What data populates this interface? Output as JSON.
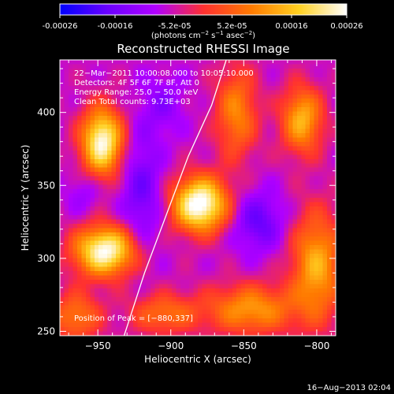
{
  "colorbar": {
    "ticks": [
      "-0.00026",
      "-0.00016",
      "-5.2e-05",
      "5.2e-05",
      "0.00016",
      "0.00026"
    ],
    "tick_values": [
      -0.00026,
      -0.00016,
      -5.2e-05,
      5.2e-05,
      0.00016,
      0.00026
    ],
    "range": [
      -0.00026,
      0.00026
    ],
    "unit_main": "(photons cm",
    "unit_sup1": "−2",
    "unit_mid": " s",
    "unit_sup2": "−1",
    "unit_tail": " asec",
    "unit_sup3": "−2",
    "unit_close": ")",
    "colormap": [
      "#0000ff",
      "#6a00ff",
      "#b000ff",
      "#ff3030",
      "#ff7a00",
      "#ffd020",
      "#ffffff"
    ]
  },
  "chart_data": {
    "type": "heatmap",
    "title": "Reconstructed RHESSI Image",
    "xlabel": "Heliocentric X (arcsec)",
    "ylabel": "Heliocentric Y (arcsec)",
    "xlim": [
      -976,
      -787
    ],
    "ylim": [
      247,
      436
    ],
    "x_ticks": [
      -950,
      -900,
      -850,
      -800
    ],
    "y_ticks": [
      250,
      300,
      350,
      400
    ],
    "x_tick_labels": [
      "−950",
      "−900",
      "−850",
      "−800"
    ],
    "y_tick_labels": [
      "250",
      "300",
      "350",
      "400"
    ],
    "info_lines": [
      "22−Mar−2011 10:00:08.000 to 10:05:10.000",
      "Detectors: 4F 5F 6F 7F 8F, Att 0",
      "Energy Range: 25.0 − 50.0 keV",
      "Clean    Total counts: 9.73E+03"
    ],
    "peak_label": "Position of Peak = [−880,337]",
    "peak": [
      -880,
      337
    ],
    "background_level": 0.12,
    "sources": [
      {
        "x": -880,
        "y": 337,
        "level": 1.0,
        "sx": 13,
        "sy": 13
      },
      {
        "x": -947,
        "y": 380,
        "level": 0.92,
        "sx": 10,
        "sy": 16
      },
      {
        "x": -945,
        "y": 305,
        "level": 0.93,
        "sx": 15,
        "sy": 12
      },
      {
        "x": -845,
        "y": 265,
        "level": 0.52,
        "sx": 22,
        "sy": 12
      },
      {
        "x": -800,
        "y": 295,
        "level": 0.58,
        "sx": 12,
        "sy": 26
      },
      {
        "x": -810,
        "y": 395,
        "level": 0.6,
        "sx": 10,
        "sy": 16
      },
      {
        "x": -855,
        "y": 400,
        "level": 0.46,
        "sx": 10,
        "sy": 22
      },
      {
        "x": -965,
        "y": 260,
        "level": 0.42,
        "sx": 12,
        "sy": 12
      },
      {
        "x": -905,
        "y": 262,
        "level": 0.38,
        "sx": 16,
        "sy": 10
      },
      {
        "x": -920,
        "y": 345,
        "level": -0.28,
        "sx": 10,
        "sy": 30
      },
      {
        "x": -840,
        "y": 325,
        "level": -0.32,
        "sx": 12,
        "sy": 14
      },
      {
        "x": -905,
        "y": 405,
        "level": -0.18,
        "sx": 10,
        "sy": 14
      },
      {
        "x": -960,
        "y": 345,
        "level": -0.15,
        "sx": 8,
        "sy": 10
      }
    ],
    "limb_curve": [
      [
        -932,
        247
      ],
      [
        -918,
        290
      ],
      [
        -903,
        330
      ],
      [
        -888,
        370
      ],
      [
        -872,
        405
      ],
      [
        -862,
        436
      ]
    ]
  },
  "footer": {
    "date": "16−Aug−2013 02:04"
  }
}
